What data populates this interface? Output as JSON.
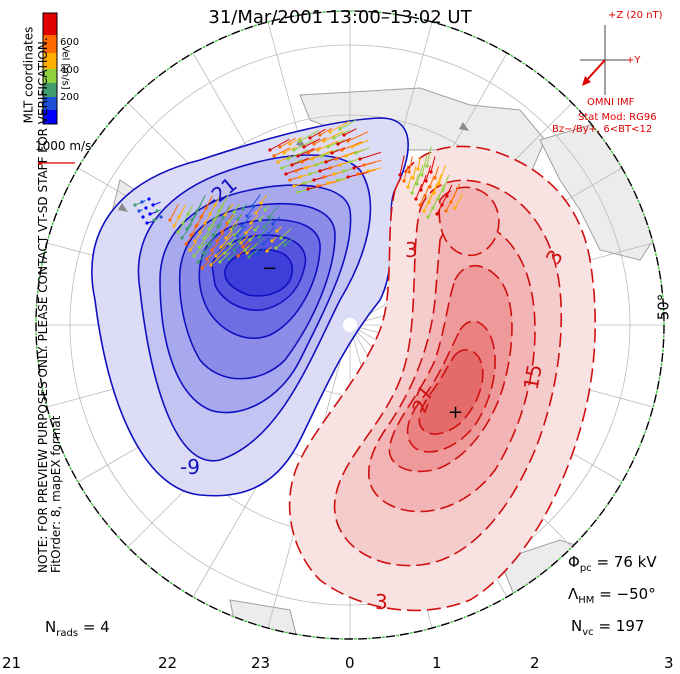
{
  "title": "31/Mar/2001 13:00–13:02 UT",
  "coordinates_label": "MLT coordinates",
  "colorbar": {
    "label": "Vel [m/s]",
    "ticks": [
      "600",
      "400",
      "200"
    ],
    "colors": [
      "#e00000",
      "#ff6a00",
      "#ffb000",
      "#8fd13f",
      "#3f9d6f",
      "#1f4fd8",
      "#0000ff"
    ]
  },
  "vector_scale_label": "1000 m/s",
  "imf": {
    "z_label": "+Z (20 nT)",
    "y_label": "+Y",
    "source": "OMNI IMF",
    "stat_mod": "Stat Mod: RG96",
    "condition": "Bz−/By+, 6<BT<12"
  },
  "preview_note": "NOTE: FOR PREVIEW PURPOSES ONLY. PLEASE CONTACT VT-SD STAFF FOR VERIFICATION.",
  "fit_order": "FitOrder: 8, mapEX format",
  "latitude_label": "50°",
  "contour_labels": {
    "neg": [
      "-21",
      "-9"
    ],
    "pos": [
      "3",
      "3",
      "27",
      "15",
      "3"
    ],
    "min_marker": "−",
    "max_marker": "+"
  },
  "stats": {
    "phi_pc_label": "Φ",
    "phi_pc_sub": "pc",
    "phi_pc_value": "= 76 kV",
    "lambda_label": "Λ",
    "lambda_sub": "HM",
    "lambda_value": "= −50°",
    "nvc_label": "N",
    "nvc_sub": "vc",
    "nvc_value": "= 197",
    "nrads_label": "N",
    "nrads_sub": "rads",
    "nrads_value": "= 4"
  },
  "mlt_labels": [
    "21",
    "22",
    "23",
    "0",
    "1",
    "2",
    "3"
  ],
  "colors": {
    "negative_line": "#1010c0",
    "positive_line": "#d01010",
    "negative_fill": "#3a3af0",
    "positive_fill": "#f05050",
    "land": "#e8e8e8",
    "coast": "#9a9a9a"
  }
}
